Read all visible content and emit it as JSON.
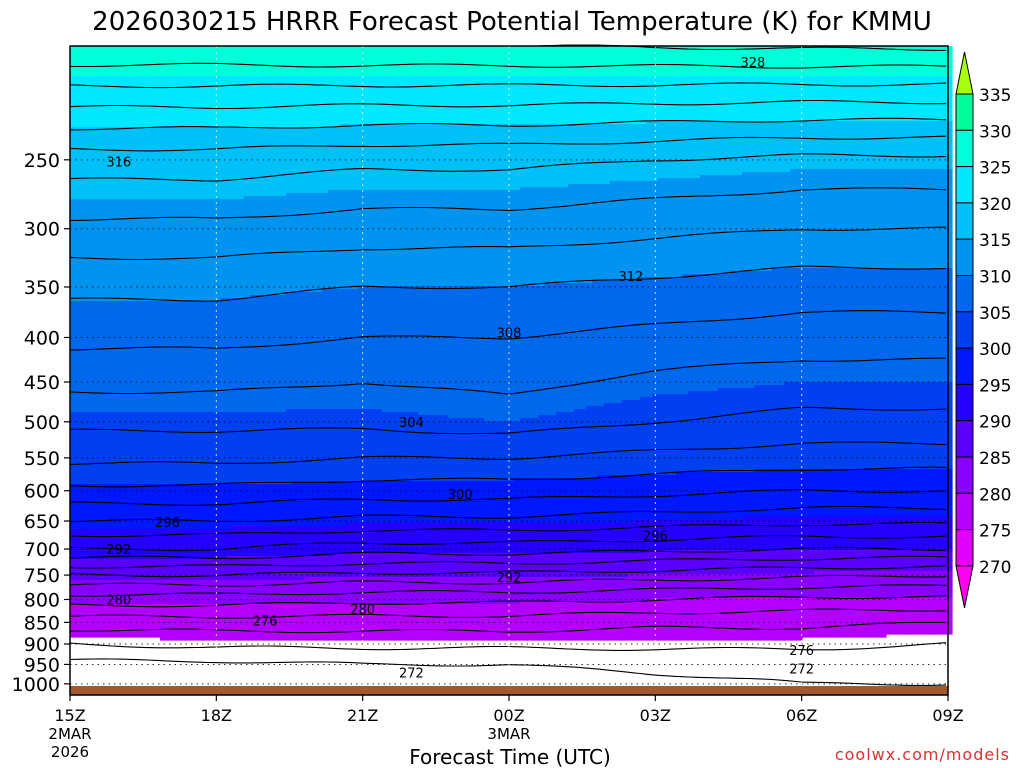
{
  "chart_data": {
    "type": "contour",
    "title": "2026030215 HRRR Forecast Potential Temperature (K) for KMMU",
    "xlabel": "Forecast Time (UTC)",
    "ylabel": "",
    "x_ticks": [
      {
        "label": "15Z",
        "sub": [
          "2MAR",
          "2026"
        ],
        "hour": 0
      },
      {
        "label": "18Z",
        "sub": [],
        "hour": 3
      },
      {
        "label": "21Z",
        "sub": [],
        "hour": 6
      },
      {
        "label": "00Z",
        "sub": [
          "3MAR"
        ],
        "hour": 9
      },
      {
        "label": "03Z",
        "sub": [],
        "hour": 12
      },
      {
        "label": "06Z",
        "sub": [],
        "hour": 15
      },
      {
        "label": "09Z",
        "sub": [],
        "hour": 18
      }
    ],
    "xlim": [
      0,
      18
    ],
    "y_axis": {
      "type": "pressure_log",
      "unit": "hPa",
      "range": [
        1030,
        185
      ]
    },
    "y_ticks": [
      250,
      300,
      350,
      400,
      450,
      500,
      550,
      600,
      650,
      700,
      750,
      800,
      850,
      900,
      950,
      1000
    ],
    "colorbar": {
      "levels": [
        270,
        275,
        280,
        285,
        290,
        295,
        300,
        305,
        310,
        315,
        320,
        325,
        330,
        335
      ],
      "colors": [
        "#ff00f0",
        "#e000ff",
        "#b400ff",
        "#8a00ff",
        "#5a00ff",
        "#2400ff",
        "#0018ff",
        "#0040f0",
        "#0068ec",
        "#0094f0",
        "#00c0f8",
        "#00e8ff",
        "#00ffd8",
        "#00ff9a",
        "#00ff55",
        "#a8ff10"
      ],
      "extend": "both"
    },
    "contour_interval": 2,
    "series": [
      {
        "name": "theta_profile",
        "description": "potential temperature (K) vs pressure (hPa) at forecast hours 0,3,6,9,12,15,18",
        "pressure": [
          1000,
          950,
          900,
          850,
          800,
          750,
          700,
          650,
          600,
          550,
          500,
          450,
          400,
          350,
          300,
          250,
          200
        ],
        "theta_by_hour": [
          [
            270.5,
            271.5,
            274,
            277,
            281,
            286,
            292,
            296,
            299.5,
            302.5,
            304.5,
            306.5,
            308.5,
            310.5,
            313.5,
            317,
            325
          ],
          [
            271,
            271.5,
            274.5,
            277,
            281,
            286,
            292,
            296,
            299.5,
            302.5,
            304.5,
            306.5,
            308.5,
            310.5,
            313.5,
            317,
            325
          ],
          [
            271.5,
            272,
            274.5,
            277,
            280.5,
            285.5,
            291,
            295.5,
            299,
            302,
            304.5,
            306,
            308,
            310,
            313,
            316.5,
            325
          ],
          [
            271,
            272,
            274.5,
            277,
            280.5,
            285.5,
            291,
            295.5,
            299,
            302,
            305,
            306.5,
            308,
            310,
            313,
            316.5,
            325
          ],
          [
            271.5,
            272.5,
            274.5,
            276.5,
            280,
            285,
            290.5,
            295,
            298.5,
            301.5,
            304,
            305.5,
            307.5,
            309.5,
            312.5,
            316,
            325
          ],
          [
            272,
            272.5,
            274.5,
            276.5,
            279.5,
            284.5,
            290,
            294.5,
            298,
            301,
            303.5,
            305,
            307,
            309,
            312,
            315.5,
            325
          ],
          [
            272,
            272.5,
            274,
            276,
            279.5,
            284,
            290,
            294.5,
            298,
            301,
            303.5,
            305,
            307,
            309,
            312,
            315.5,
            325
          ]
        ]
      }
    ],
    "contour_labels": [
      {
        "text": "328",
        "hour": 14,
        "p": 193
      },
      {
        "text": "316",
        "hour": 1,
        "p": 251
      },
      {
        "text": "312",
        "hour": 11.5,
        "p": 340
      },
      {
        "text": "308",
        "hour": 9,
        "p": 395
      },
      {
        "text": "304",
        "hour": 7,
        "p": 500
      },
      {
        "text": "300",
        "hour": 8,
        "p": 605
      },
      {
        "text": "296",
        "hour": 2,
        "p": 652
      },
      {
        "text": "296",
        "hour": 12,
        "p": 675
      },
      {
        "text": "292",
        "hour": 1,
        "p": 700
      },
      {
        "text": "292",
        "hour": 9,
        "p": 754
      },
      {
        "text": "280",
        "hour": 1,
        "p": 800
      },
      {
        "text": "280",
        "hour": 6,
        "p": 820
      },
      {
        "text": "276",
        "hour": 4,
        "p": 846
      },
      {
        "text": "276",
        "hour": 15,
        "p": 915
      },
      {
        "text": "272",
        "hour": 15,
        "p": 960
      },
      {
        "text": "272",
        "hour": 7,
        "p": 970
      }
    ],
    "grid": true
  },
  "footer": {
    "credit": "coolwx.com/models"
  },
  "colors": {
    "terrain": "#a05a2c",
    "label": "#000000",
    "credit": "#e03030"
  }
}
